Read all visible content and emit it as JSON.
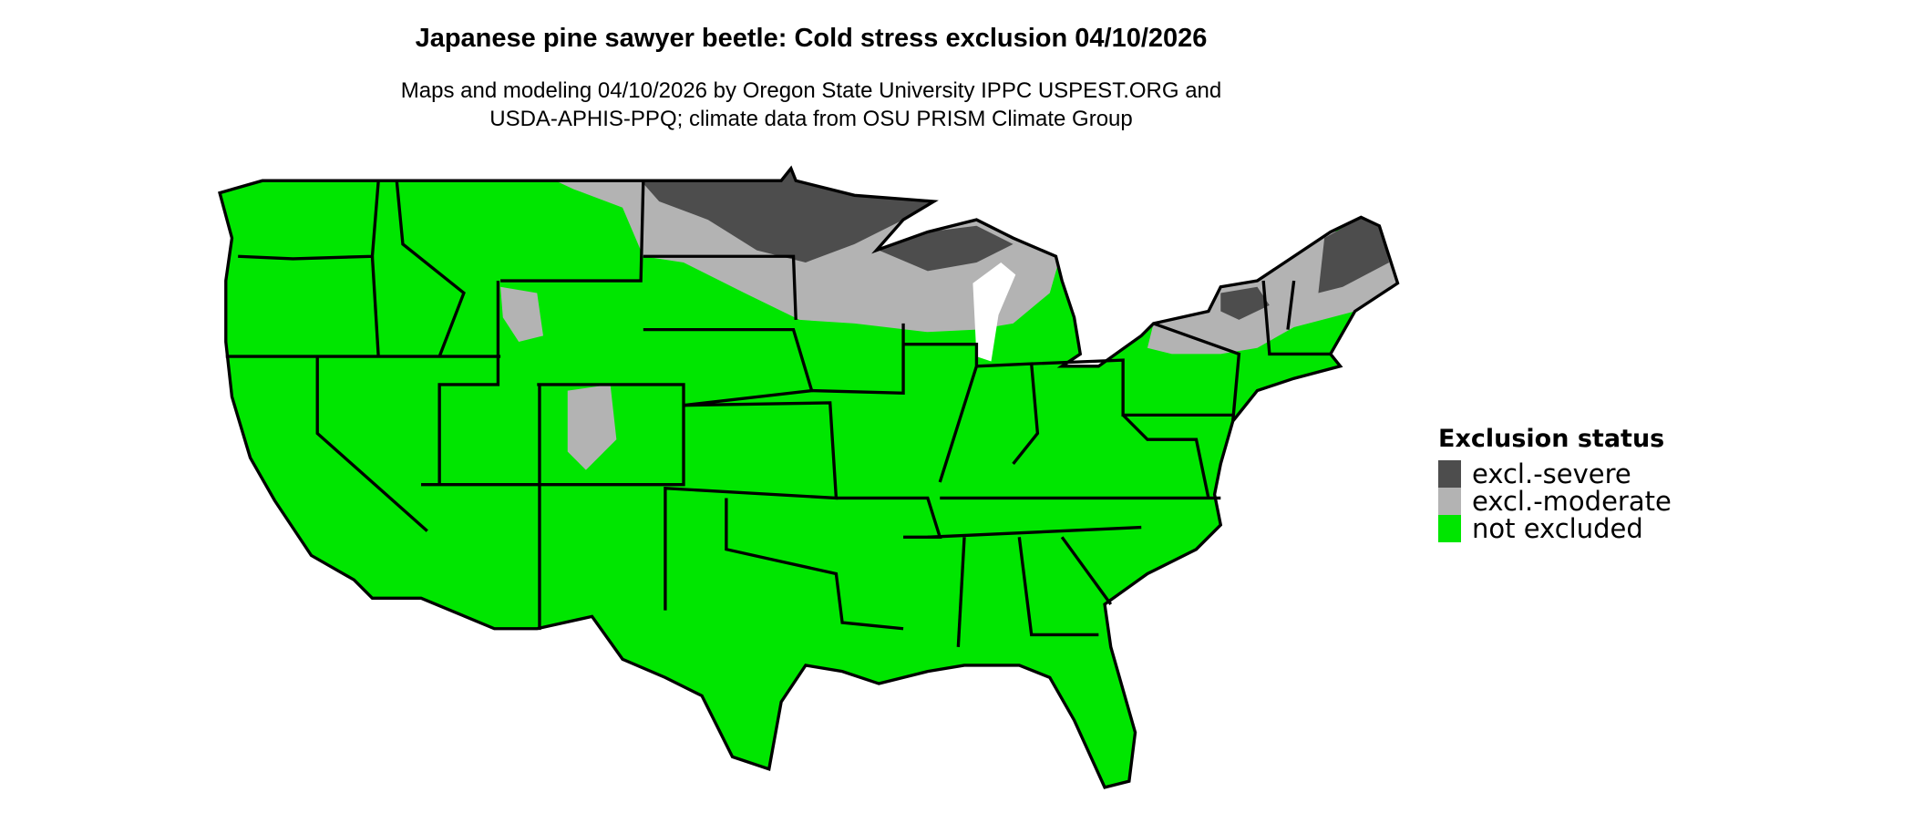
{
  "title": "Japanese pine sawyer beetle: Cold stress exclusion 04/10/2026",
  "subtitle": [
    "Maps and modeling 04/10/2026 by Oregon State University IPPC USPEST.ORG and",
    "USDA-APHIS-PPQ; climate data from OSU PRISM Climate Group"
  ],
  "legend": {
    "title": "Exclusion status",
    "items": [
      {
        "label": "excl.-severe",
        "color": "#4d4d4d"
      },
      {
        "label": "excl.-moderate",
        "color": "#b3b3b3"
      },
      {
        "label": "not excluded",
        "color": "#00e600"
      }
    ]
  },
  "map": {
    "region": "Contiguous United States",
    "border_color": "#000000",
    "background_color": "#ffffff"
  }
}
